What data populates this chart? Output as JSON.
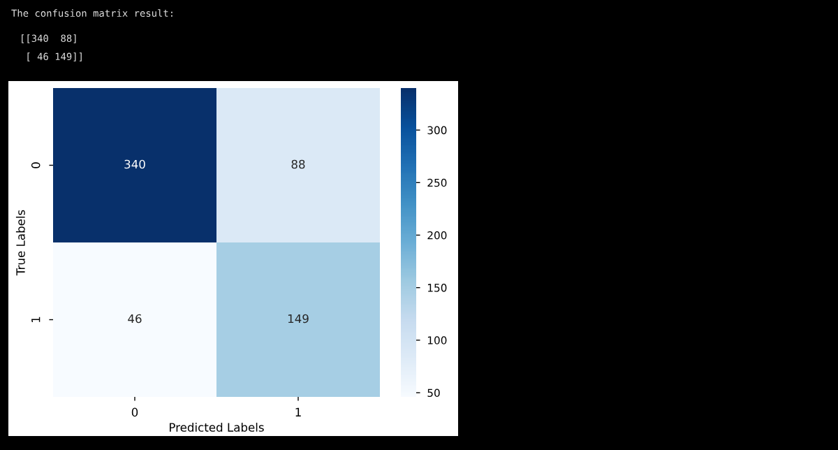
{
  "chart_data": {
    "type": "heatmap",
    "annotations": [
      "The confusion matrix result:",
      "[[340  88]",
      " [ 46 149]]"
    ],
    "xlabel": "Predicted Labels",
    "ylabel": "True Labels",
    "categories": [
      "0",
      "1"
    ],
    "y_categories": [
      "0",
      "1"
    ],
    "cells": [
      [
        340,
        88
      ],
      [
        46,
        149
      ]
    ],
    "data_labels": true,
    "clim": [
      46,
      340
    ],
    "cticks": [
      50,
      100,
      150,
      200,
      250,
      300
    ]
  }
}
